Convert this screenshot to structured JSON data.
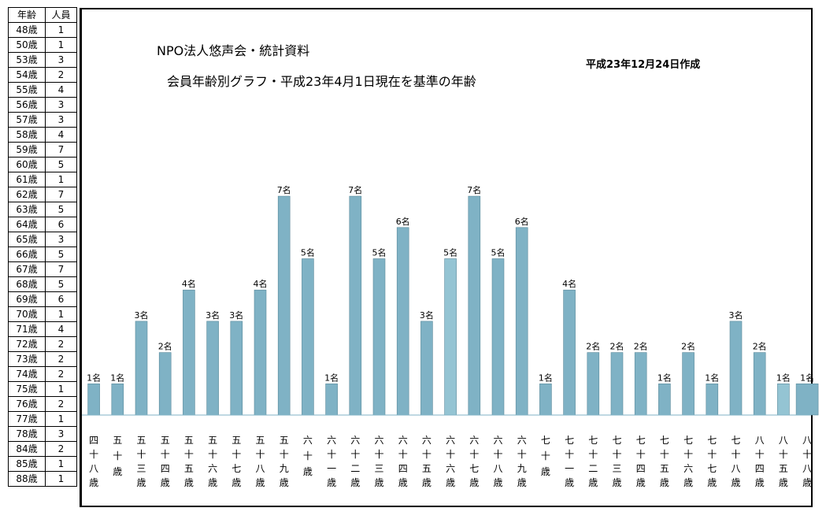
{
  "table": {
    "header_age": "年齢",
    "header_count": "人員",
    "rows": [
      {
        "age": "48歳",
        "count": "1"
      },
      {
        "age": "50歳",
        "count": "1"
      },
      {
        "age": "53歳",
        "count": "3"
      },
      {
        "age": "54歳",
        "count": "2"
      },
      {
        "age": "55歳",
        "count": "4"
      },
      {
        "age": "56歳",
        "count": "3"
      },
      {
        "age": "57歳",
        "count": "3"
      },
      {
        "age": "58歳",
        "count": "4"
      },
      {
        "age": "59歳",
        "count": "7"
      },
      {
        "age": "60歳",
        "count": "5"
      },
      {
        "age": "61歳",
        "count": "1"
      },
      {
        "age": "62歳",
        "count": "7"
      },
      {
        "age": "63歳",
        "count": "5"
      },
      {
        "age": "64歳",
        "count": "6"
      },
      {
        "age": "65歳",
        "count": "3"
      },
      {
        "age": "66歳",
        "count": "5"
      },
      {
        "age": "67歳",
        "count": "7"
      },
      {
        "age": "68歳",
        "count": "5"
      },
      {
        "age": "69歳",
        "count": "6"
      },
      {
        "age": "70歳",
        "count": "1"
      },
      {
        "age": "71歳",
        "count": "4"
      },
      {
        "age": "72歳",
        "count": "2"
      },
      {
        "age": "73歳",
        "count": "2"
      },
      {
        "age": "74歳",
        "count": "2"
      },
      {
        "age": "75歳",
        "count": "1"
      },
      {
        "age": "76歳",
        "count": "2"
      },
      {
        "age": "77歳",
        "count": "1"
      },
      {
        "age": "78歳",
        "count": "3"
      },
      {
        "age": "84歳",
        "count": "2"
      },
      {
        "age": "85歳",
        "count": "1"
      },
      {
        "age": "88歳",
        "count": "1"
      }
    ]
  },
  "chart": {
    "title1": "NPO法人悠声会・統計資料",
    "title2": "会員年齢別グラフ・平成23年4月1日現在を基準の年齢",
    "date": "平成23年12月24日作成"
  },
  "chart_data": {
    "type": "bar",
    "title": "会員年齢別グラフ・平成23年4月1日現在を基準の年齢",
    "categories": [
      "四十八歳",
      "五十歳",
      "五十三歳",
      "五十四歳",
      "五十五歳",
      "五十六歳",
      "五十七歳",
      "五十八歳",
      "五十九歳",
      "六十歳",
      "六十一歳",
      "六十二歳",
      "六十三歳",
      "六十四歳",
      "六十五歳",
      "六十六歳",
      "六十七歳",
      "六十八歳",
      "六十九歳",
      "七十歳",
      "七十一歳",
      "七十二歳",
      "七十三歳",
      "七十四歳",
      "七十五歳",
      "七十六歳",
      "七十七歳",
      "七十八歳",
      "八十四歳",
      "八十五歳",
      "八十八歳"
    ],
    "values": [
      1,
      1,
      3,
      2,
      4,
      3,
      3,
      4,
      7,
      5,
      1,
      7,
      5,
      6,
      3,
      5,
      7,
      5,
      6,
      1,
      4,
      2,
      2,
      2,
      1,
      2,
      1,
      3,
      2,
      1,
      1
    ],
    "value_labels": [
      "1名",
      "1名",
      "3名",
      "2名",
      "4名",
      "3名",
      "3名",
      "4名",
      "7名",
      "5名",
      "1名",
      "7名",
      "5名",
      "6名",
      "3名",
      "5名",
      "7名",
      "5名",
      "6名",
      "1名",
      "4名",
      "2名",
      "2名",
      "2名",
      "1名",
      "2名",
      "1名",
      "3名",
      "2名",
      "1名",
      "1名"
    ],
    "ylim": [
      0,
      7
    ],
    "grid": false,
    "colors": {
      "bar": "#7fb2c5",
      "bar_light": "#94c4d3",
      "bar_stroke": "#5b8a9c"
    }
  }
}
